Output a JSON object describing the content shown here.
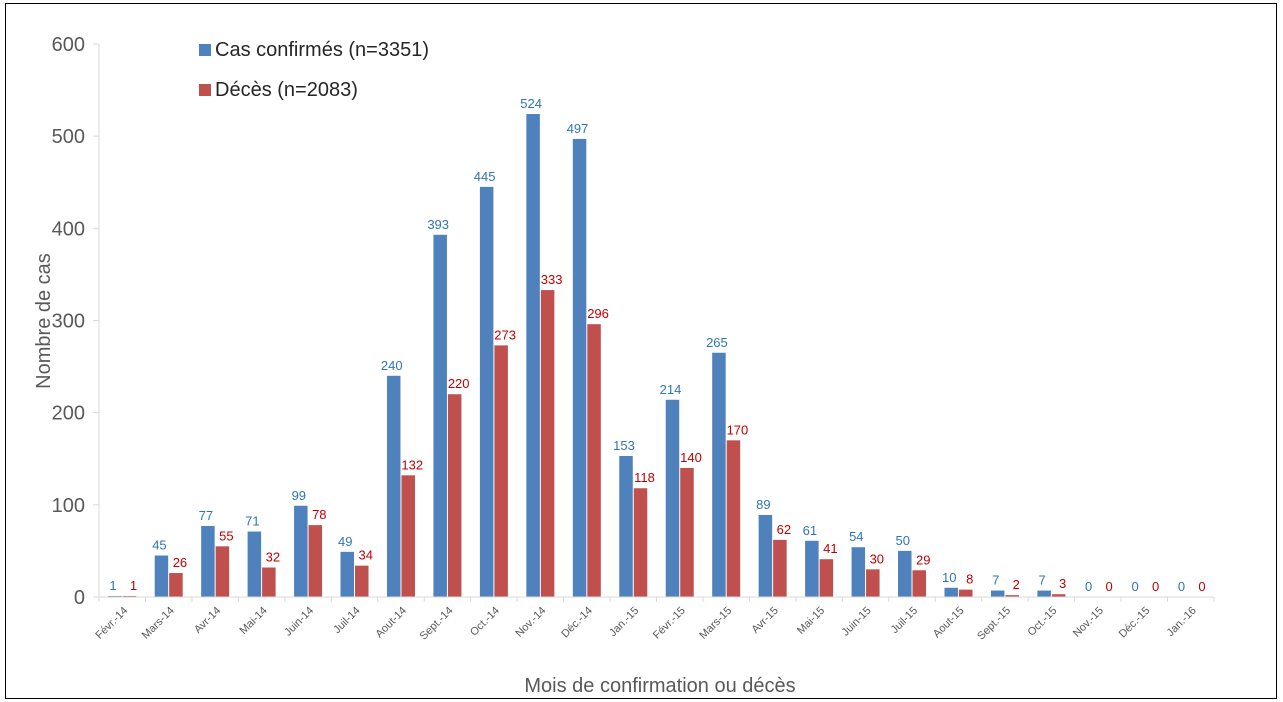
{
  "chart_data": {
    "type": "bar",
    "xlabel": "Mois de confirmation ou décès",
    "ylabel": "Nombre de cas",
    "ylim": [
      0,
      600
    ],
    "yticks": [
      "0",
      "100",
      "200",
      "300",
      "400",
      "500",
      "600"
    ],
    "grid": false,
    "legend_position": "top-left",
    "categories": [
      "Févr.-14",
      "Mars-14",
      "Avr-14",
      "Mai-14",
      "Juin-14",
      "Juil-14",
      "Aout-14",
      "Sept.-14",
      "Oct.-14",
      "Nov.-14",
      "Déc.-14",
      "Jan.-15",
      "Févr.-15",
      "Mars-15",
      "Avr-15",
      "Mai-15",
      "Juin-15",
      "Juil-15",
      "Aout-15",
      "Sept.-15",
      "Oct.-15",
      "Nov.-15",
      "Déc.-15",
      "Jan.-16"
    ],
    "series": [
      {
        "name": "Cas confirmés (n=3351)",
        "color": "#4f81bd",
        "label_color": "#2e75b6",
        "values": [
          1,
          45,
          77,
          71,
          99,
          49,
          240,
          393,
          445,
          524,
          497,
          153,
          214,
          265,
          89,
          61,
          54,
          50,
          10,
          7,
          7,
          0,
          0,
          0
        ]
      },
      {
        "name": "Décès (n=2083)",
        "color": "#c0504d",
        "label_color": "#c00000",
        "values": [
          1,
          26,
          55,
          32,
          78,
          34,
          132,
          220,
          273,
          333,
          296,
          118,
          140,
          170,
          62,
          41,
          30,
          29,
          8,
          2,
          3,
          0,
          0,
          0
        ]
      }
    ]
  }
}
